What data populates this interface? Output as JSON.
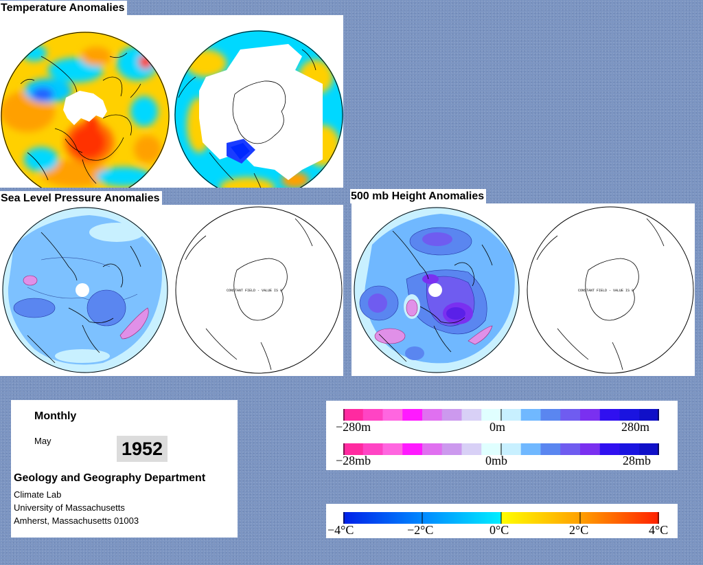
{
  "titles": {
    "temperature": "Temperature Anomalies",
    "slp": "Sea Level Pressure Anomalies",
    "height": "500 mb Height Anomalies"
  },
  "maps": {
    "constant_field_note": "CONSTANT FIELD - VALUE IS 0"
  },
  "info": {
    "period": "Monthly",
    "month": "May",
    "year": "1952",
    "department": "Geology and Geography Department",
    "lab": "Climate Lab",
    "university": "University of Massachusetts",
    "address": "Amherst, Massachusetts 01003"
  },
  "legends": {
    "height": {
      "min": "−280m",
      "mid": "0m",
      "max": "280m"
    },
    "pressure": {
      "min": "−28mb",
      "mid": "0mb",
      "max": "28mb"
    },
    "temperature": {
      "labels": [
        "−4°C",
        "−2°C",
        "0°C",
        "2°C",
        "4°C"
      ]
    }
  },
  "colors": {
    "background": "#7c95c2",
    "anomaly_scale": [
      "#ff2aa0",
      "#ff44c4",
      "#ff66e0",
      "#ff1aff",
      "#e070f0",
      "#cc99ee",
      "#d8d0f6",
      "#e0ffff",
      "#c8f0ff",
      "#70b8ff",
      "#5a86f0",
      "#6f5cf0",
      "#7a30f0",
      "#3010f0",
      "#1a14e0",
      "#1010c8"
    ],
    "temperature_scale": [
      "#0028ff",
      "#0066ff",
      "#00aaff",
      "#00d8ff",
      "#00eeff",
      "#ffff00",
      "#ffd000",
      "#ffa000",
      "#ff7000",
      "#ff3000"
    ]
  }
}
